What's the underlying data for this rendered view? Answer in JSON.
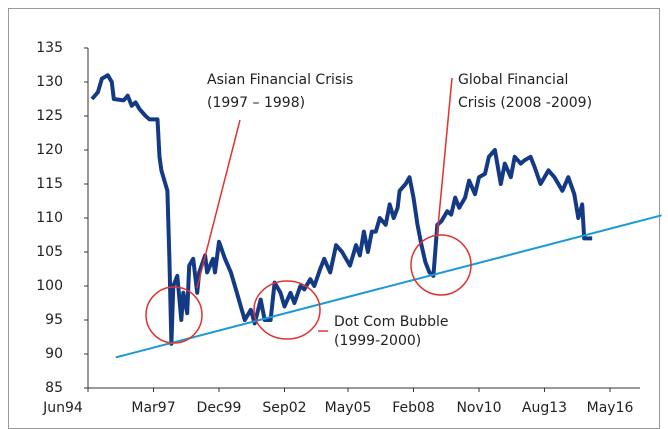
{
  "chart_data": {
    "type": "line",
    "xticks": [
      "Jun94",
      "Mar97",
      "Dec99",
      "Sep02",
      "May05",
      "Feb08",
      "Nov10",
      "Aug13",
      "May16"
    ],
    "ylim": [
      85,
      135
    ],
    "yticks": [
      85,
      90,
      95,
      100,
      105,
      110,
      115,
      120,
      125,
      130,
      135
    ],
    "series": [
      {
        "color": "#143a86",
        "x": [
          "Aug94",
          "Nov94",
          "Jan95",
          "Apr95",
          "Jun95",
          "Jul95",
          "Dec95",
          "Feb96",
          "Apr96",
          "Jun96",
          "Aug96",
          "Nov96",
          "Jan97",
          "May97",
          "Jun97",
          "Jul97",
          "Oct97",
          "Nov97",
          "Dec97",
          "Jan98",
          "Mar98",
          "May98",
          "Jun98",
          "Aug98",
          "Sep98",
          "Nov98",
          "Jan99",
          "Feb99",
          "May99",
          "Jun99",
          "Sep99",
          "Oct99",
          "Dec99",
          "Mar00",
          "Jun00",
          "Sep00",
          "Nov00",
          "Jan01",
          "Apr01",
          "Jun01",
          "Sep01",
          "Nov01",
          "Feb02",
          "Apr02",
          "Jul02",
          "Sep02",
          "Dec02",
          "Feb03",
          "May03",
          "Jul03",
          "Oct03",
          "Dec03",
          "Mar04",
          "May04",
          "Aug04",
          "Nov04",
          "Feb05",
          "Apr05",
          "Jun05",
          "Sep05",
          "Nov05",
          "Jan06",
          "Mar06",
          "May06",
          "Jul06",
          "Sep06",
          "Dec06",
          "Feb07",
          "Apr07",
          "Jun07",
          "Jul07",
          "Oct07",
          "Dec07",
          "Feb08",
          "Apr08",
          "Jun08",
          "Aug08",
          "Oct08",
          "Dec08",
          "Feb09",
          "Apr09",
          "Jul09",
          "Sep09",
          "Nov09",
          "Jan10",
          "Apr10",
          "Jun10",
          "Sep10",
          "Nov10",
          "Feb11",
          "Apr11",
          "Jul11",
          "Oct11",
          "Dec11",
          "Mar12",
          "May12",
          "Aug12",
          "Oct12",
          "Jan13",
          "Mar13",
          "Jun13",
          "Oct13",
          "Jan14",
          "May14",
          "Aug14",
          "Nov14",
          "Jan15",
          "Mar15",
          "Apr15",
          "Aug15"
        ],
        "values": [
          127.5,
          128.5,
          130.5,
          131,
          130,
          127.5,
          127.3,
          128,
          126.5,
          127,
          126,
          125,
          124.5,
          124.5,
          119,
          117,
          114,
          104,
          91.5,
          100,
          101.5,
          95,
          99,
          96,
          103,
          104,
          99,
          102,
          104.5,
          102,
          104,
          102,
          106.5,
          104,
          102,
          99,
          97,
          95,
          96.5,
          94.5,
          98,
          95,
          95,
          100.5,
          99,
          97,
          99,
          97.5,
          100,
          99.5,
          101,
          100,
          102.5,
          104,
          102,
          106,
          105,
          104,
          103,
          106,
          104.5,
          108,
          105,
          108,
          108,
          110,
          109,
          112,
          110,
          111.5,
          114,
          115,
          116,
          113,
          109,
          106,
          103.5,
          102,
          101.5,
          109,
          109.5,
          111,
          110.5,
          113,
          111.5,
          113,
          115.5,
          113.5,
          116,
          116.5,
          119,
          120,
          115,
          118,
          116,
          119,
          118,
          118.5,
          119,
          117.5,
          115,
          117,
          116,
          114,
          116,
          113.5,
          110,
          112,
          107,
          107
        ]
      },
      {
        "color": "#1c9ad6",
        "x": [
          "Aug95",
          "Jul18"
        ],
        "values": [
          89.5,
          110.4
        ]
      }
    ],
    "annotations": [
      [
        "Asian Financial Crisis",
        "(1997 – 1998)"
      ],
      [
        "Global Financial",
        "Crisis (2008 -2009)"
      ],
      [
        "Dot Com Bubble",
        "(1999-2000)"
      ]
    ]
  }
}
